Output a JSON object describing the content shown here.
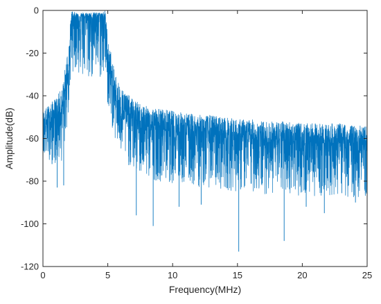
{
  "chart_data": {
    "type": "line",
    "title": "",
    "xlabel": "Frequency(MHz)",
    "ylabel": "Amplitude(dB)",
    "xlim": [
      0,
      25
    ],
    "ylim": [
      -120,
      0
    ],
    "xticks": [
      0,
      5,
      10,
      15,
      20,
      25
    ],
    "yticks": [
      0,
      -20,
      -40,
      -60,
      -80,
      -100,
      -120
    ],
    "grid": false,
    "legend": "none",
    "series": [
      {
        "color": "#0072BD",
        "x": [
          0,
          0.5,
          1,
          1.5,
          2,
          2.2,
          2.5,
          3,
          3.5,
          4,
          4.5,
          4.8,
          5,
          5.5,
          6,
          7,
          8,
          9,
          10,
          11,
          12,
          13,
          14,
          15,
          16,
          17,
          18,
          19,
          20,
          21,
          22,
          23,
          24,
          25
        ],
        "y": [
          -55,
          -52,
          -50,
          -46,
          -28,
          -4,
          -3,
          -3,
          -3,
          -3,
          -3,
          -4,
          -25,
          -40,
          -46,
          -51,
          -54,
          -55,
          -56,
          -57,
          -58,
          -58,
          -59,
          -60,
          -60,
          -61,
          -61,
          -61,
          -62,
          -62,
          -62,
          -62,
          -63,
          -63
        ],
        "spread_upper": [
          8,
          8,
          9,
          10,
          14,
          4,
          2,
          2,
          2,
          2,
          2,
          4,
          14,
          12,
          10,
          9,
          9,
          9,
          9,
          9,
          9,
          9,
          9,
          9,
          9,
          9,
          9,
          9,
          9,
          9,
          9,
          9,
          9,
          9
        ],
        "spread_lower": [
          15,
          18,
          22,
          25,
          20,
          25,
          25,
          30,
          30,
          30,
          30,
          30,
          20,
          20,
          22,
          25,
          25,
          25,
          25,
          25,
          25,
          25,
          25,
          25,
          25,
          25,
          25,
          25,
          25,
          25,
          25,
          25,
          25,
          25
        ]
      }
    ],
    "spikes": [
      {
        "x": 0.7,
        "y": -72
      },
      {
        "x": 1.1,
        "y": -83
      },
      {
        "x": 1.6,
        "y": -82
      },
      {
        "x": 7.2,
        "y": -96
      },
      {
        "x": 8.5,
        "y": -101
      },
      {
        "x": 10.5,
        "y": -92
      },
      {
        "x": 12.2,
        "y": -91
      },
      {
        "x": 15.1,
        "y": -113
      },
      {
        "x": 18.6,
        "y": -108
      },
      {
        "x": 20.3,
        "y": -92
      },
      {
        "x": 21.7,
        "y": -95
      },
      {
        "x": 24.1,
        "y": -90
      }
    ]
  }
}
